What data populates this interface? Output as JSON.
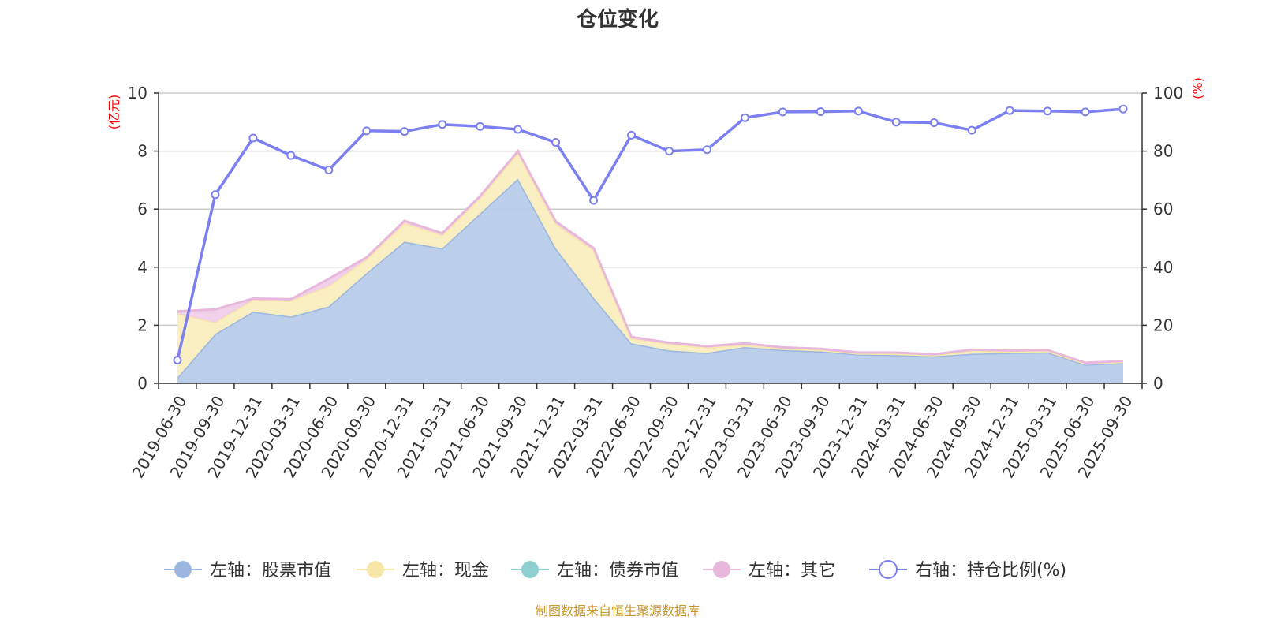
{
  "chart_data": {
    "type": "area",
    "title": "仓位变化",
    "left_axis": {
      "unit": "(亿元)",
      "ylim": [
        0,
        10
      ],
      "ticks": [
        0,
        2,
        4,
        6,
        8,
        10
      ]
    },
    "right_axis": {
      "unit": "(%)",
      "ylim": [
        0,
        100
      ],
      "ticks": [
        0,
        20,
        40,
        60,
        80,
        100
      ]
    },
    "categories": [
      "2019-06-30",
      "2019-09-30",
      "2019-12-31",
      "2020-03-31",
      "2020-06-30",
      "2020-09-30",
      "2020-12-31",
      "2021-03-31",
      "2021-06-30",
      "2021-09-30",
      "2021-12-31",
      "2022-03-31",
      "2022-06-30",
      "2022-09-30",
      "2022-12-31",
      "2023-03-31",
      "2023-06-30",
      "2023-09-30",
      "2023-12-31",
      "2024-03-31",
      "2024-06-30",
      "2024-09-30",
      "2024-12-31",
      "2025-03-31",
      "2025-06-30",
      "2025-09-30"
    ],
    "series": [
      {
        "name": "左轴：股票市值",
        "axis": "left",
        "stack": true,
        "color": "#9bb7e0",
        "fill": "#b7cbe9",
        "values": [
          0.2,
          1.7,
          2.47,
          2.3,
          2.65,
          3.8,
          4.88,
          4.65,
          5.85,
          7.05,
          4.65,
          2.95,
          1.38,
          1.13,
          1.05,
          1.25,
          1.15,
          1.1,
          1.0,
          0.97,
          0.93,
          1.02,
          1.05,
          1.07,
          0.65,
          0.7
        ]
      },
      {
        "name": "左轴：现金",
        "axis": "left",
        "stack": true,
        "color": "#f8e7a8",
        "fill": "#faeec0",
        "values": [
          2.2,
          0.4,
          0.4,
          0.55,
          0.7,
          0.47,
          0.64,
          0.45,
          0.53,
          0.9,
          0.85,
          1.64,
          0.16,
          0.22,
          0.18,
          0.08,
          0.05,
          0.05,
          0.03,
          0.05,
          0.04,
          0.1,
          0.05,
          0.04,
          0.03,
          0.04
        ]
      },
      {
        "name": "左轴：债券市值",
        "axis": "left",
        "stack": true,
        "color": "#8ed0d0",
        "fill": "#a8dcdc",
        "values": [
          0,
          0,
          0,
          0,
          0,
          0,
          0,
          0,
          0,
          0,
          0,
          0,
          0,
          0,
          0,
          0,
          0,
          0,
          0,
          0,
          0,
          0,
          0,
          0,
          0,
          0
        ]
      },
      {
        "name": "左轴：其它",
        "axis": "left",
        "stack": true,
        "color": "#e8b8dc",
        "fill": "#f0cde8",
        "values": [
          0.08,
          0.45,
          0.05,
          0.05,
          0.25,
          0.07,
          0.08,
          0.07,
          0.07,
          0.05,
          0.08,
          0.07,
          0.06,
          0.05,
          0.05,
          0.05,
          0.04,
          0.04,
          0.03,
          0.04,
          0.03,
          0.04,
          0.03,
          0.04,
          0.03,
          0.03
        ]
      },
      {
        "name": "右轴：持仓比例(%)",
        "axis": "right",
        "type": "line",
        "color": "#7b7ff0",
        "values": [
          8,
          65,
          84.5,
          78.5,
          73.5,
          87,
          86.8,
          89.2,
          88.5,
          87.5,
          83,
          63,
          85.5,
          80,
          80.5,
          91.5,
          93.5,
          93.6,
          93.8,
          90,
          89.8,
          87.2,
          94,
          93.8,
          93.5,
          94.5
        ]
      }
    ],
    "legend_position": "bottom",
    "grid": true
  },
  "source_text": "制图数据来自恒生聚源数据库"
}
